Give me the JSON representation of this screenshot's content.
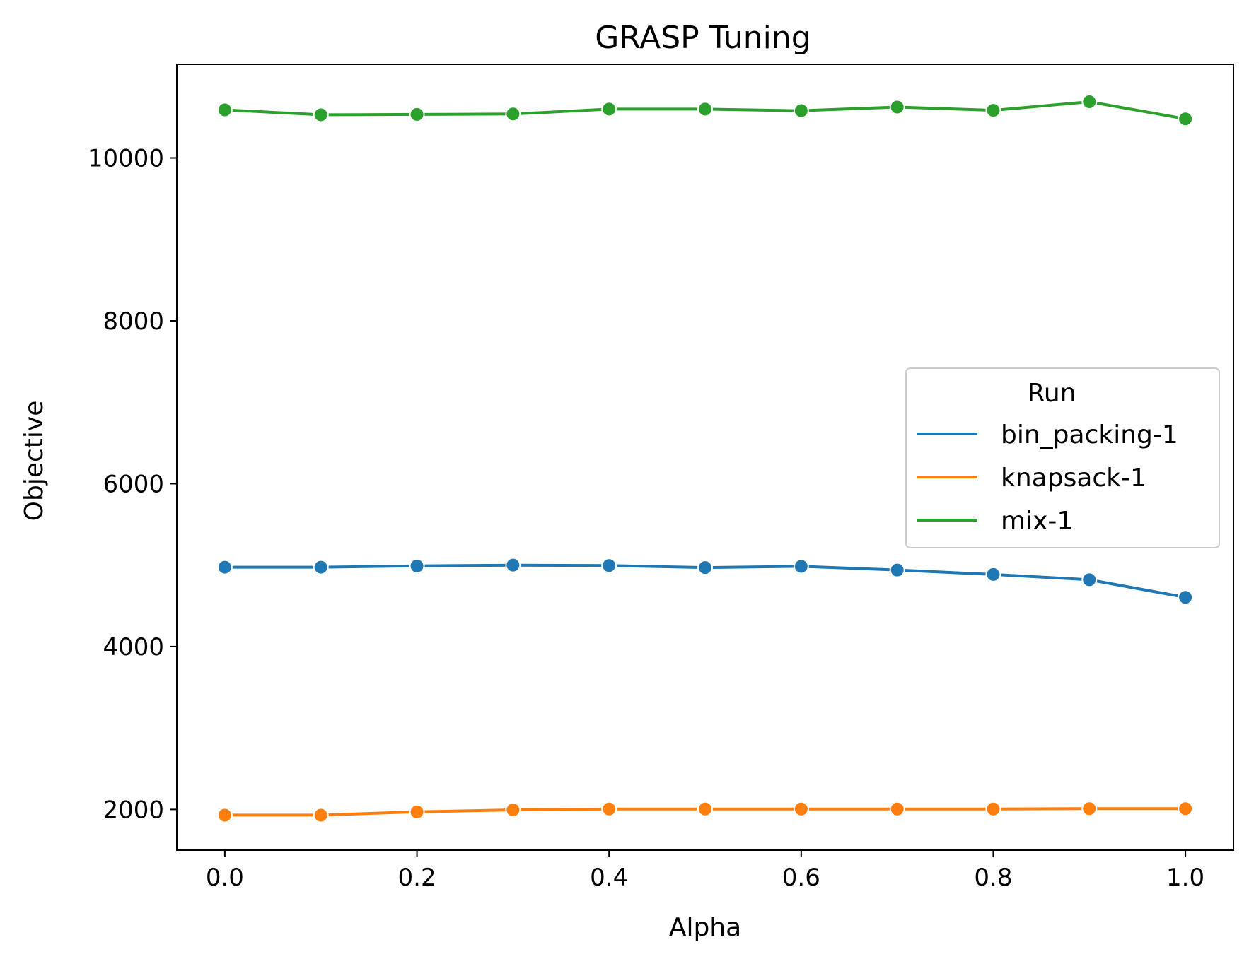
{
  "chart_data": {
    "type": "line",
    "title": "GRASP Tuning",
    "xlabel": "Alpha",
    "ylabel": "Objective",
    "xlim": [
      -0.05,
      1.05
    ],
    "ylim": [
      1500,
      11150
    ],
    "xticks": [
      0.0,
      0.2,
      0.4,
      0.6,
      0.8,
      1.0
    ],
    "xtick_labels": [
      "0.0",
      "0.2",
      "0.4",
      "0.6",
      "0.8",
      "1.0"
    ],
    "yticks": [
      2000,
      4000,
      6000,
      8000,
      10000
    ],
    "ytick_labels": [
      "2000",
      "4000",
      "6000",
      "8000",
      "10000"
    ],
    "grid": false,
    "legend": {
      "title": "Run",
      "placement": "center-right"
    },
    "x": [
      0.0,
      0.1,
      0.2,
      0.3,
      0.4,
      0.5,
      0.6,
      0.7,
      0.8,
      0.9,
      1.0
    ],
    "series": [
      {
        "name": "bin_packing-1",
        "color": "#1f77b4",
        "values": [
          4975,
          4975,
          4990,
          5000,
          4995,
          4970,
          4985,
          4940,
          4885,
          4820,
          4605
        ]
      },
      {
        "name": "knapsack-1",
        "color": "#ff7f0e",
        "values": [
          1930,
          1930,
          1970,
          1995,
          2005,
          2005,
          2005,
          2005,
          2005,
          2010,
          2010
        ]
      },
      {
        "name": "mix-1",
        "color": "#2ca02c",
        "values": [
          10590,
          10530,
          10535,
          10540,
          10600,
          10600,
          10580,
          10625,
          10585,
          10690,
          10480
        ]
      }
    ]
  }
}
